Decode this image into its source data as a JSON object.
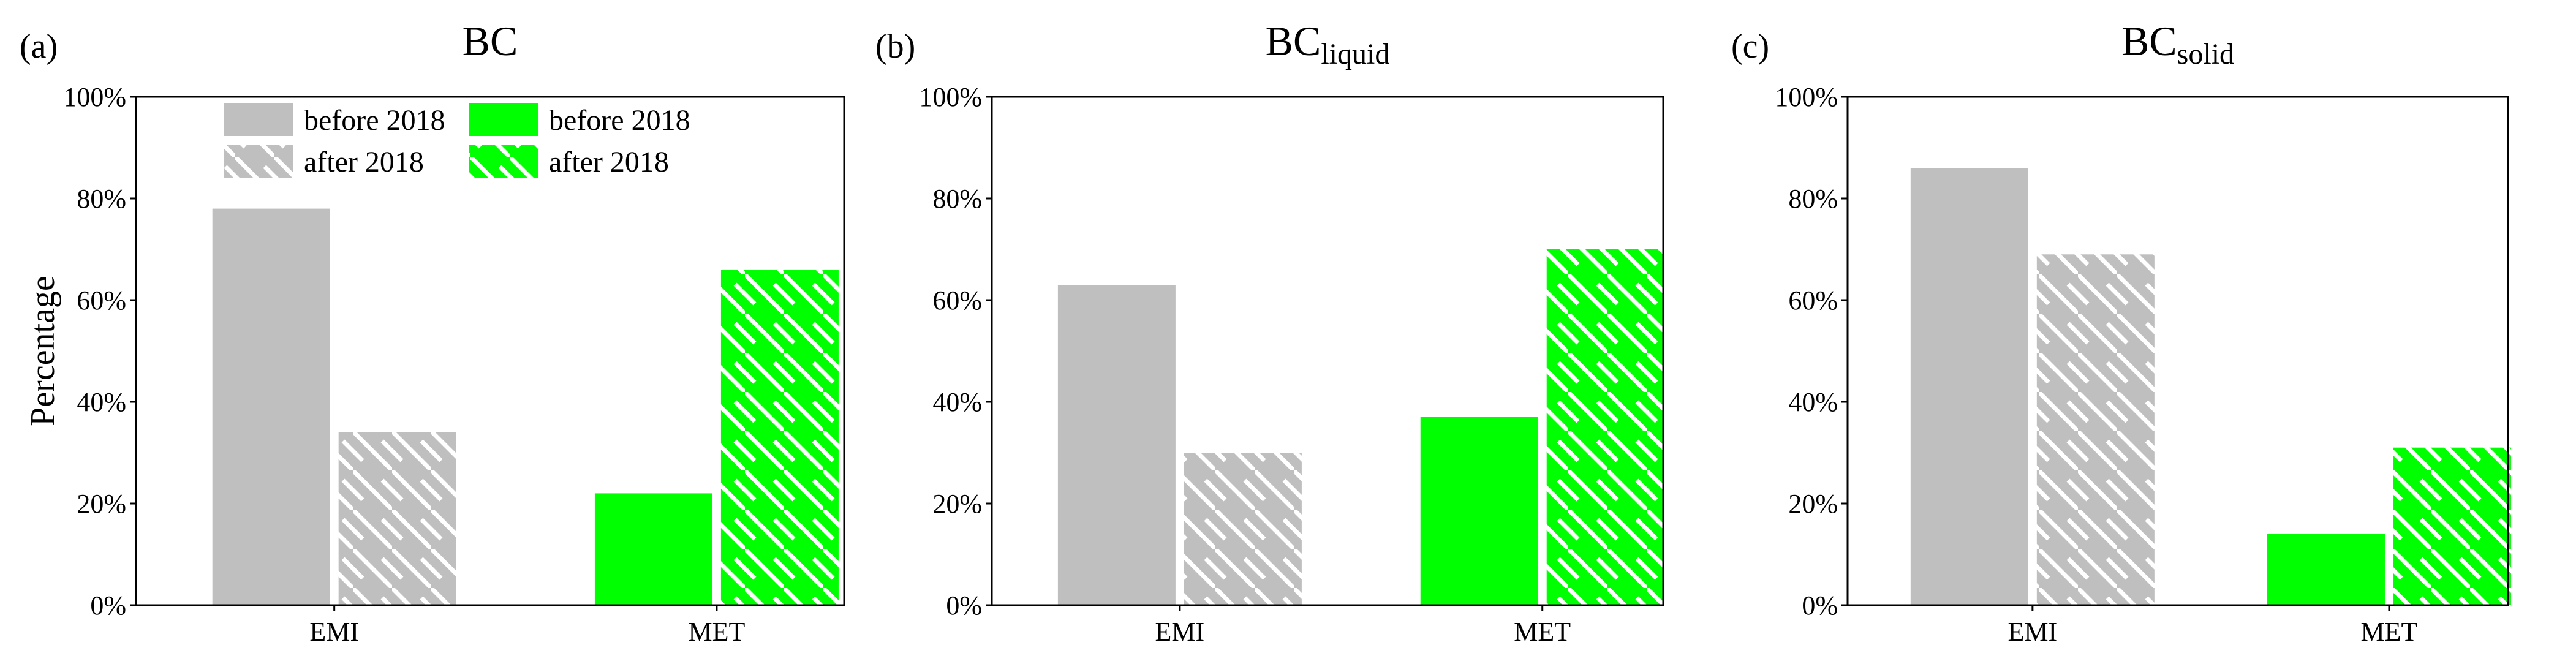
{
  "colors": {
    "gray": "#bfbfbf",
    "green": "#00ff00",
    "hatch": "#ffffff"
  },
  "legend": {
    "location": "top-left",
    "entries": [
      {
        "label": "before 2018",
        "color": "gray",
        "hatched": false
      },
      {
        "label": "before 2018",
        "color": "green",
        "hatched": false
      },
      {
        "label": "after 2018",
        "color": "gray",
        "hatched": true
      },
      {
        "label": "after 2018",
        "color": "green",
        "hatched": true
      }
    ]
  },
  "chart_data": [
    {
      "type": "bar",
      "panel": "(a)",
      "title": "BC",
      "title_sub": "",
      "ylabel": "Percentage",
      "ylim": [
        0,
        100
      ],
      "yticks": [
        "0%",
        "20%",
        "40%",
        "60%",
        "80%",
        "100%"
      ],
      "categories": [
        "EMI",
        "MET"
      ],
      "series": [
        {
          "name": "before 2018",
          "colors": [
            "gray",
            "green"
          ],
          "hatched": false,
          "values": [
            78,
            22
          ]
        },
        {
          "name": "after 2018",
          "colors": [
            "gray",
            "green"
          ],
          "hatched": true,
          "values": [
            34,
            66
          ]
        }
      ]
    },
    {
      "type": "bar",
      "panel": "(b)",
      "title": "BC",
      "title_sub": "liquid",
      "ylabel": "",
      "ylim": [
        0,
        100
      ],
      "yticks": [
        "0%",
        "20%",
        "40%",
        "60%",
        "80%",
        "100%"
      ],
      "categories": [
        "EMI",
        "MET"
      ],
      "series": [
        {
          "name": "before 2018",
          "colors": [
            "gray",
            "green"
          ],
          "hatched": false,
          "values": [
            63,
            37
          ]
        },
        {
          "name": "after 2018",
          "colors": [
            "gray",
            "green"
          ],
          "hatched": true,
          "values": [
            30,
            70
          ]
        }
      ]
    },
    {
      "type": "bar",
      "panel": "(c)",
      "title": "BC",
      "title_sub": "solid",
      "ylabel": "",
      "ylim": [
        0,
        100
      ],
      "yticks": [
        "0%",
        "20%",
        "40%",
        "60%",
        "80%",
        "100%"
      ],
      "categories": [
        "EMI",
        "MET"
      ],
      "series": [
        {
          "name": "before 2018",
          "colors": [
            "gray",
            "green"
          ],
          "hatched": false,
          "values": [
            86,
            14
          ]
        },
        {
          "name": "after 2018",
          "colors": [
            "gray",
            "green"
          ],
          "hatched": true,
          "values": [
            69,
            31
          ]
        }
      ]
    }
  ]
}
